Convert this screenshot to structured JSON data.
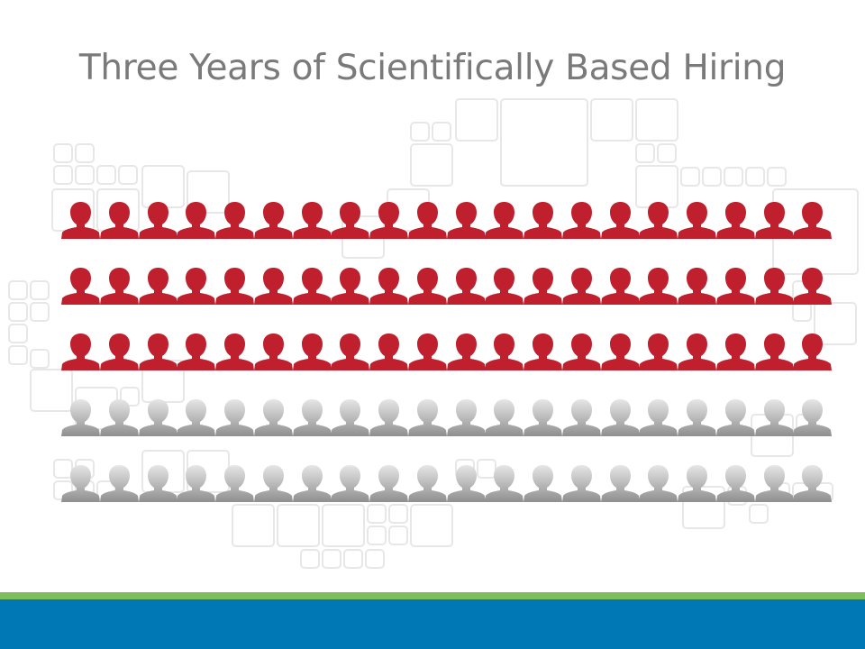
{
  "slide": {
    "title": "Three Years of Scientifically Based Hiring",
    "title_color": "#7a7a7a"
  },
  "grid": {
    "rows": 5,
    "columns": 20,
    "highlighted_rows": 3,
    "highlighted_count": 60,
    "total_count": 100,
    "icon": "person-silhouette-icon",
    "highlight_color": "#c0202e",
    "muted_color_top": "#e6e6e6",
    "muted_color_bottom": "#8f8f8f"
  },
  "footer": {
    "stripe_color": "#7dbd5a",
    "band_color": "#0078b6"
  },
  "background": {
    "pattern_color": "#e7e7e7"
  }
}
